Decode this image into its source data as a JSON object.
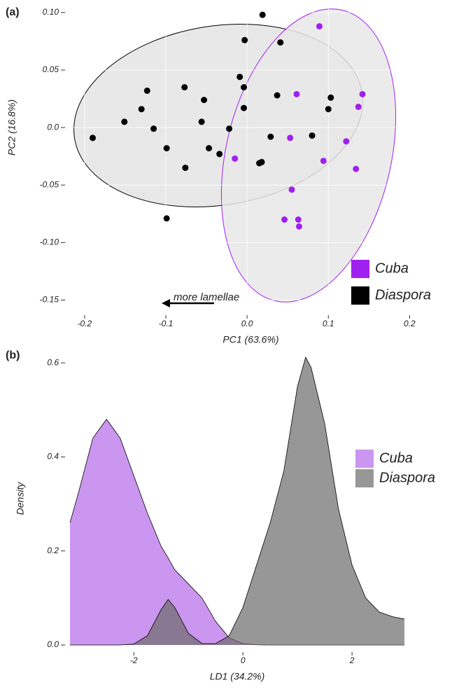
{
  "chart_data": [
    {
      "type": "scatter",
      "panel_label": "(a)",
      "x_label": "PC1 (63.6%)",
      "y_label": "PC2 (16.8%)",
      "annotation": "more lamellae",
      "xlim": [
        -0.218,
        0.21
      ],
      "ylim": [
        -0.157,
        0.106
      ],
      "xticks": [
        -0.2,
        -0.1,
        {
          "value": 0,
          "label": "0.0"
        },
        0.1,
        0.2
      ],
      "yticks": [
        {
          "value": 0.1,
          "label": "0.10"
        },
        0.05,
        {
          "value": 0,
          "label": "0.0"
        },
        -0.05,
        {
          "value": -0.1,
          "label": "-0.10"
        },
        -0.15
      ],
      "grid": true,
      "series": [
        {
          "name": "Cuba",
          "color": "#a020f0",
          "x": [
            0.089,
            0.061,
            0.142,
            0.137,
            0.053,
            0.122,
            -0.015,
            0.094,
            0.134,
            0.055,
            0.046,
            0.063,
            0.064
          ],
          "values": [
            0.088,
            0.029,
            0.029,
            0.018,
            -0.009,
            -0.012,
            -0.027,
            -0.029,
            -0.036,
            -0.054,
            -0.08,
            -0.08,
            -0.086
          ]
        },
        {
          "name": "Diaspora",
          "color": "#000000",
          "x": [
            0.019,
            -0.003,
            0.041,
            -0.009,
            -0.004,
            -0.077,
            -0.123,
            -0.13,
            -0.053,
            -0.151,
            -0.115,
            -0.056,
            -0.19,
            -0.022,
            -0.004,
            -0.099,
            -0.047,
            -0.034,
            -0.076,
            -0.099,
            0.015,
            0.018,
            0.029,
            0.037,
            0.103,
            0.1,
            0.08
          ],
          "values": [
            0.098,
            0.076,
            0.074,
            0.044,
            0.035,
            0.035,
            0.032,
            0.016,
            0.024,
            0.005,
            -0.001,
            0.005,
            -0.009,
            -0.001,
            0.017,
            -0.018,
            -0.018,
            -0.023,
            -0.035,
            -0.079,
            -0.031,
            -0.03,
            -0.008,
            0.028,
            0.026,
            0.016,
            -0.007
          ]
        }
      ]
    },
    {
      "type": "area",
      "panel_label": "(b)",
      "x_label": "LD1 (34.2%)",
      "y_label": "Density",
      "xlim": [
        -3.17,
        2.96
      ],
      "ylim": [
        0,
        0.63
      ],
      "xticks": [
        -2,
        0,
        2
      ],
      "yticks": [
        {
          "value": 0,
          "label": "0.0"
        },
        0.2,
        0.4,
        0.6
      ],
      "x": [
        -3.17,
        -3,
        -2.75,
        -2.5,
        -2.25,
        -2,
        -1.75,
        -1.5,
        -1.37,
        -1.25,
        -1,
        -0.75,
        -0.5,
        -0.25,
        0,
        0.25,
        0.5,
        0.75,
        1,
        1.15,
        1.25,
        1.5,
        1.75,
        2,
        2.25,
        2.5,
        2.75,
        2.96
      ],
      "series": [
        {
          "name": "Cuba",
          "color": "#b56ae8",
          "values": [
            0.26,
            0.33,
            0.44,
            0.48,
            0.44,
            0.36,
            0.28,
            0.21,
            0.185,
            0.16,
            0.13,
            0.1,
            0.05,
            0.015,
            0.003,
            0.0005,
            0,
            0,
            0,
            0,
            0,
            0,
            0,
            0,
            0,
            0,
            0,
            0
          ]
        },
        {
          "name": "Diaspora",
          "color": "#6b6b6b",
          "values": [
            0,
            0,
            0,
            0,
            0,
            0.002,
            0.02,
            0.075,
            0.097,
            0.08,
            0.025,
            0.003,
            0.003,
            0.02,
            0.08,
            0.17,
            0.26,
            0.37,
            0.55,
            0.612,
            0.59,
            0.47,
            0.29,
            0.17,
            0.1,
            0.07,
            0.06,
            0.055
          ]
        }
      ]
    }
  ]
}
